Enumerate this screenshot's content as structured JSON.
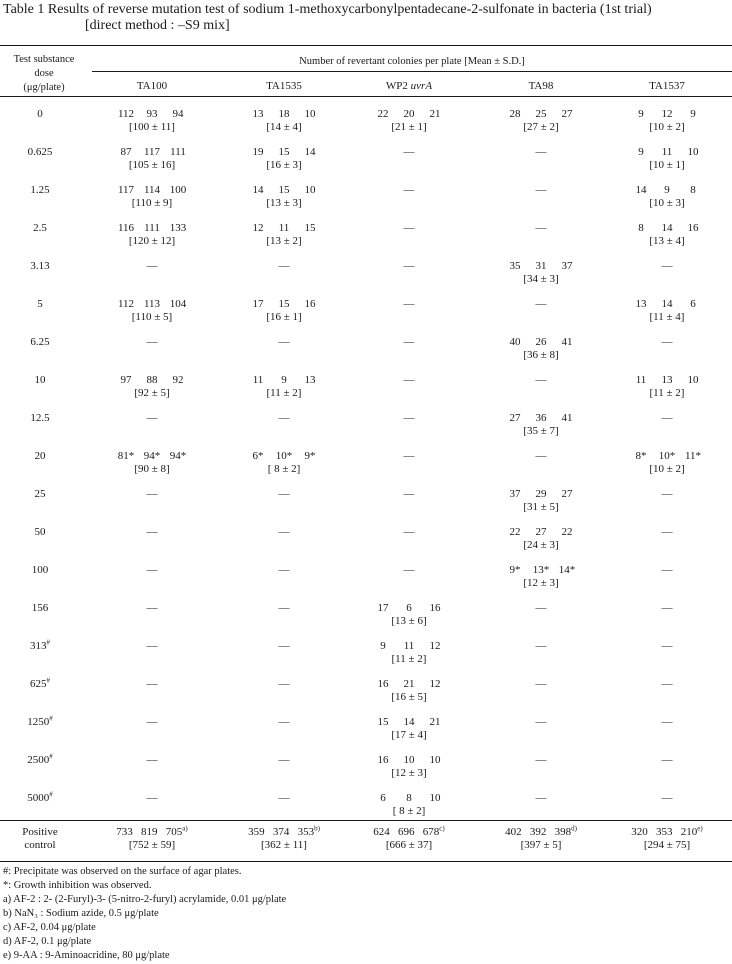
{
  "title": {
    "line1": "Table 1   Results of reverse mutation test of sodium 1-methoxycarbonylpentadecane-2-sulfonate in bacteria (1st trial)",
    "line2": "[direct method : –S9 mix]"
  },
  "header": {
    "dose_col": [
      "Test substance",
      "dose",
      "(μg/plate)"
    ],
    "group": "Number of revertant colonies per plate [Mean ± S.D.]",
    "strains": [
      "TA100",
      "TA1535",
      "WP2 uvrA",
      "TA98",
      "TA1537"
    ]
  },
  "rows": [
    {
      "dose": "0",
      "cells": [
        [
          "112",
          "93",
          "94",
          "[100 ± 11]"
        ],
        [
          "13",
          "18",
          "10",
          "[14 ± 4]"
        ],
        [
          "22",
          "20",
          "21",
          "[21 ± 1]"
        ],
        [
          "28",
          "25",
          "27",
          "[27 ± 2]"
        ],
        [
          "9",
          "12",
          "9",
          "[10 ± 2]"
        ]
      ]
    },
    {
      "dose": "0.625",
      "cells": [
        [
          "87",
          "117",
          "111",
          "[105 ± 16]"
        ],
        [
          "19",
          "15",
          "14",
          "[16 ± 3]"
        ],
        null,
        null,
        [
          "9",
          "11",
          "10",
          "[10 ± 1]"
        ]
      ]
    },
    {
      "dose": "1.25",
      "cells": [
        [
          "117",
          "114",
          "100",
          "[110 ± 9]"
        ],
        [
          "14",
          "15",
          "10",
          "[13 ± 3]"
        ],
        null,
        null,
        [
          "14",
          "9",
          "8",
          "[10 ± 3]"
        ]
      ]
    },
    {
      "dose": "2.5",
      "cells": [
        [
          "116",
          "111",
          "133",
          "[120 ± 12]"
        ],
        [
          "12",
          "11",
          "15",
          "[13 ± 2]"
        ],
        null,
        null,
        [
          "8",
          "14",
          "16",
          "[13 ± 4]"
        ]
      ]
    },
    {
      "dose": "3.13",
      "cells": [
        null,
        null,
        null,
        [
          "35",
          "31",
          "37",
          "[34 ± 3]"
        ],
        null
      ]
    },
    {
      "dose": "5",
      "cells": [
        [
          "112",
          "113",
          "104",
          "[110 ± 5]"
        ],
        [
          "17",
          "15",
          "16",
          "[16 ± 1]"
        ],
        null,
        null,
        [
          "13",
          "14",
          "6",
          "[11 ± 4]"
        ]
      ]
    },
    {
      "dose": "6.25",
      "cells": [
        null,
        null,
        null,
        [
          "40",
          "26",
          "41",
          "[36 ± 8]"
        ],
        null
      ]
    },
    {
      "dose": "10",
      "cells": [
        [
          "97",
          "88",
          "92",
          "[92 ± 5]"
        ],
        [
          "11",
          "9",
          "13",
          "[11 ± 2]"
        ],
        null,
        null,
        [
          "11",
          "13",
          "10",
          "[11 ± 2]"
        ]
      ]
    },
    {
      "dose": "12.5",
      "cells": [
        null,
        null,
        null,
        [
          "27",
          "36",
          "41",
          "[35 ± 7]"
        ],
        null
      ]
    },
    {
      "dose": "20",
      "cells": [
        [
          "81*",
          "94*",
          "94*",
          "[90 ± 8]"
        ],
        [
          "6*",
          "10*",
          "9*",
          "[ 8 ± 2]"
        ],
        null,
        null,
        [
          "8*",
          "10*",
          "11*",
          "[10 ± 2]"
        ]
      ]
    },
    {
      "dose": "25",
      "cells": [
        null,
        null,
        null,
        [
          "37",
          "29",
          "27",
          "[31 ± 5]"
        ],
        null
      ]
    },
    {
      "dose": "50",
      "cells": [
        null,
        null,
        null,
        [
          "22",
          "27",
          "22",
          "[24 ± 3]"
        ],
        null
      ]
    },
    {
      "dose": "100",
      "cells": [
        null,
        null,
        null,
        [
          "9*",
          "13*",
          "14*",
          "[12 ± 3]"
        ],
        null
      ]
    },
    {
      "dose": "156",
      "cells": [
        null,
        null,
        [
          "17",
          "6",
          "16",
          "[13 ± 6]"
        ],
        null,
        null
      ]
    },
    {
      "dose": "313#",
      "cells": [
        null,
        null,
        [
          "9",
          "11",
          "12",
          "[11 ± 2]"
        ],
        null,
        null
      ]
    },
    {
      "dose": "625#",
      "cells": [
        null,
        null,
        [
          "16",
          "21",
          "12",
          "[16 ± 5]"
        ],
        null,
        null
      ]
    },
    {
      "dose": "1250#",
      "cells": [
        null,
        null,
        [
          "15",
          "14",
          "21",
          "[17 ± 4]"
        ],
        null,
        null
      ]
    },
    {
      "dose": "2500#",
      "cells": [
        null,
        null,
        [
          "16",
          "10",
          "10",
          "[12 ± 3]"
        ],
        null,
        null
      ]
    },
    {
      "dose": "5000#",
      "cells": [
        null,
        null,
        [
          "6",
          "8",
          "10",
          "[ 8 ± 2]"
        ],
        null,
        null
      ]
    }
  ],
  "dash": "—",
  "positive": {
    "label": [
      "Positive",
      "control"
    ],
    "cells": [
      {
        "vals": "733   819   705",
        "sup": "a)",
        "mean": "[752 ± 59]"
      },
      {
        "vals": "359   374   353",
        "sup": "b)",
        "mean": "[362 ± 11]"
      },
      {
        "vals": "624   696   678",
        "sup": "c)",
        "mean": "[666 ± 37]"
      },
      {
        "vals": "402   392   398",
        "sup": "d)",
        "mean": "[397 ± 5]"
      },
      {
        "vals": "320   353   210",
        "sup": "e)",
        "mean": "[294 ± 75]"
      }
    ]
  },
  "footnotes": [
    "#: Precipitate was observed on the surface of agar plates.",
    "*: Growth inhibition was observed.",
    "a) AF-2 : 2- (2-Furyl)-3- (5-nitro-2-furyl) acrylamide, 0.01 μg/plate",
    "b) NaN₃ : Sodium azide, 0.5 μg/plate",
    "c) AF-2, 0.04 μg/plate",
    "d) AF-2, 0.1 μg/plate",
    "e) 9-AA : 9-Aminoacridine, 80 μg/plate"
  ]
}
